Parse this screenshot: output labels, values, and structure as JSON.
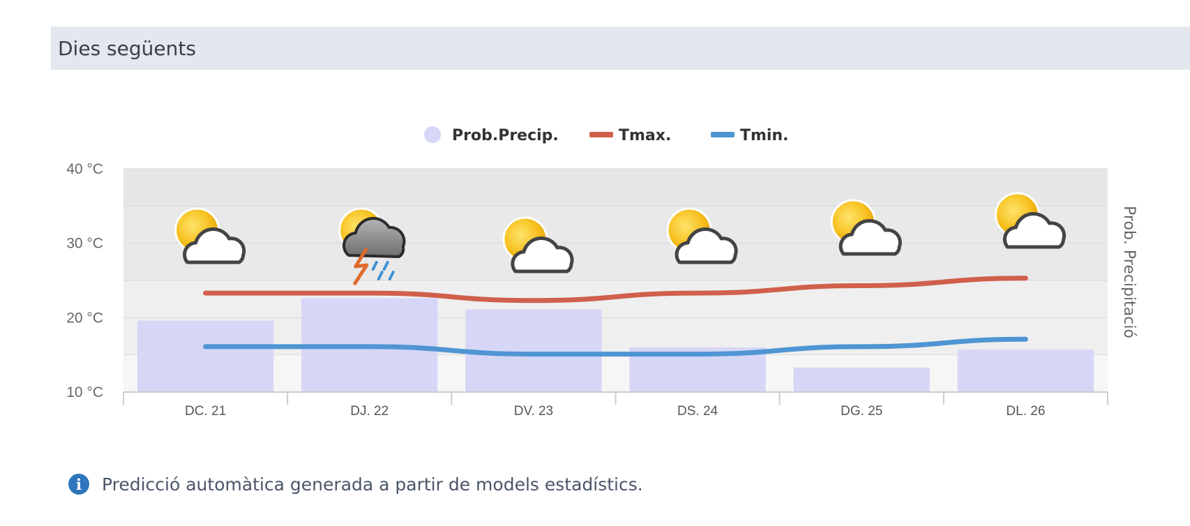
{
  "section": {
    "title": "Dies següents"
  },
  "footer": {
    "info_icon": "info-icon",
    "note": "Predicció automàtica generada a partir de models estadístics."
  },
  "chart_data": {
    "type": "bar+line",
    "categories": [
      "DC. 21",
      "DJ. 22",
      "DV. 23",
      "DS. 24",
      "DG. 25",
      "DL. 26"
    ],
    "weather_icons": [
      "partly-cloudy-icon",
      "thunderstorm-rain-icon",
      "partly-cloudy-icon",
      "partly-cloudy-icon",
      "partly-cloudy-icon",
      "partly-cloudy-icon"
    ],
    "y_left": {
      "ticks": [
        "40 °C",
        "30 °C",
        "20 °C",
        "10 °C"
      ],
      "range": [
        10,
        40
      ]
    },
    "y_right": {
      "label": "Prob. Precipitació",
      "range": [
        0,
        100
      ]
    },
    "legend": {
      "placement": "top-center",
      "items": [
        "Prob.Precip.",
        "Tmax.",
        "Tmin."
      ]
    },
    "grid": true,
    "series": [
      {
        "name": "Prob.Precip.",
        "kind": "bar",
        "axis": "right",
        "color": "#d6d6f7",
        "values": [
          32,
          42,
          37,
          20,
          11,
          19
        ]
      },
      {
        "name": "Tmax.",
        "kind": "line",
        "axis": "left",
        "color": "#d0604c",
        "values": [
          23.3,
          23.3,
          22.3,
          23.3,
          24.3,
          25.3
        ]
      },
      {
        "name": "Tmin.",
        "kind": "line",
        "axis": "left",
        "color": "#4f95d3",
        "values": [
          16.1,
          16.1,
          15.1,
          15.1,
          16.1,
          17.1
        ]
      }
    ]
  }
}
